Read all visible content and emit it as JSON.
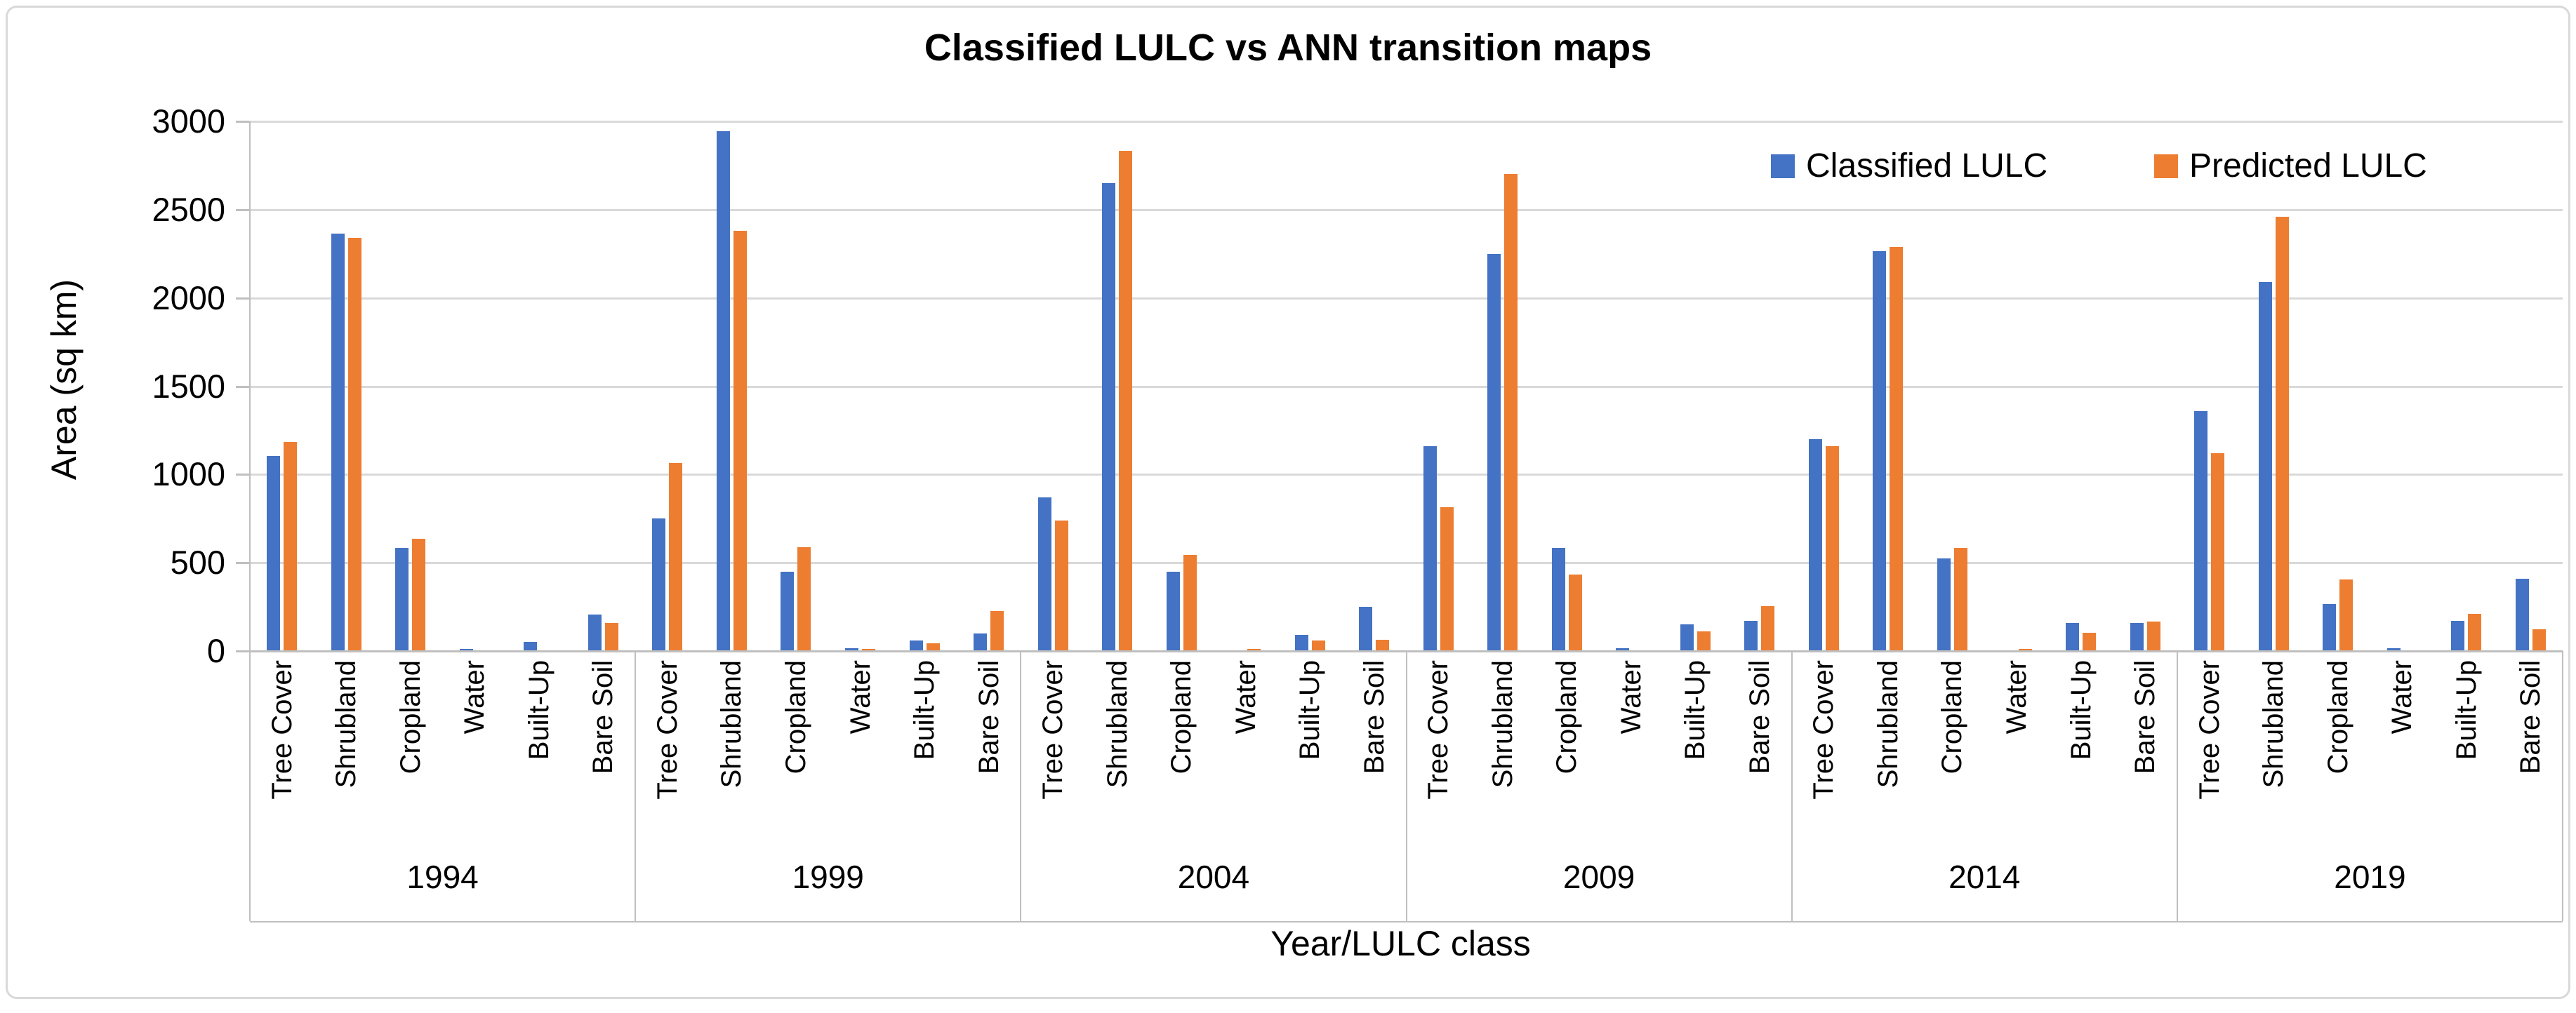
{
  "chart_data": {
    "type": "bar",
    "title": "Classified LULC vs ANN transition maps",
    "xlabel": "Year/LULC class",
    "ylabel": "Area (sq km)",
    "ylim": [
      0,
      3000
    ],
    "yticks": [
      0,
      500,
      1000,
      1500,
      2000,
      2500,
      3000
    ],
    "grid": true,
    "legend_position": "top-right-inside",
    "groups": [
      "1994",
      "1999",
      "2004",
      "2009",
      "2014",
      "2019"
    ],
    "categories": [
      "Tree Cover",
      "Shrubland",
      "Cropland",
      "Water",
      "Built-Up",
      "Bare Soil"
    ],
    "series": [
      {
        "name": "Classified LULC",
        "color": "#4472C4",
        "values": [
          [
            1105,
            2365,
            585,
            10,
            50,
            205
          ],
          [
            750,
            2945,
            450,
            15,
            60,
            100
          ],
          [
            870,
            2650,
            450,
            5,
            90,
            250
          ],
          [
            1160,
            2250,
            585,
            15,
            150,
            170
          ],
          [
            1200,
            2265,
            525,
            5,
            160,
            160
          ],
          [
            1360,
            2090,
            265,
            15,
            170,
            410
          ]
        ]
      },
      {
        "name": "Predicted LULC",
        "color": "#ED7D31",
        "values": [
          [
            1185,
            2340,
            635,
            5,
            5,
            160
          ],
          [
            1065,
            2380,
            590,
            10,
            45,
            225
          ],
          [
            740,
            2835,
            545,
            10,
            60,
            65
          ],
          [
            815,
            2700,
            435,
            5,
            110,
            255
          ],
          [
            1160,
            2290,
            585,
            10,
            105,
            165
          ],
          [
            1120,
            2460,
            405,
            5,
            210,
            125
          ]
        ]
      }
    ],
    "colors": {
      "gridline": "#D9D9D9",
      "axis_line": "#BFBFBF",
      "text": "#000000",
      "background": "#FFFFFF"
    }
  }
}
